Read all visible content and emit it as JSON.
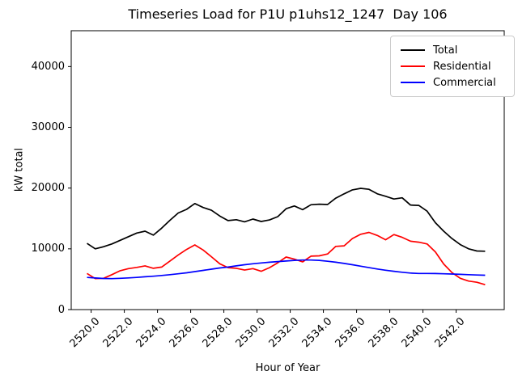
{
  "title": "Timeseries Load for P1U p1uhs12_1247  Day 106",
  "chart_data": {
    "type": "line",
    "title": "Timeseries Load for P1U p1uhs12_1247  Day 106",
    "xlabel": "Hour of Year",
    "ylabel": "kW total",
    "xlim": [
      2518.8,
      2544.9
    ],
    "ylim": [
      0,
      45900
    ],
    "x_ticks": [
      2520,
      2522,
      2524,
      2526,
      2528,
      2530,
      2532,
      2534,
      2536,
      2538,
      2540,
      2542
    ],
    "x_tick_rotation": 45,
    "y_ticks": [
      0,
      10000,
      20000,
      30000,
      40000
    ],
    "grid": false,
    "legend_position": "upper right",
    "x": [
      2519.75,
      2520.25,
      2520.75,
      2521.25,
      2521.75,
      2522.25,
      2522.75,
      2523.25,
      2523.75,
      2524.25,
      2524.75,
      2525.25,
      2525.75,
      2526.25,
      2526.75,
      2527.25,
      2527.75,
      2528.25,
      2528.75,
      2529.25,
      2529.75,
      2530.25,
      2530.75,
      2531.25,
      2531.75,
      2532.25,
      2532.75,
      2533.25,
      2533.75,
      2534.25,
      2534.75,
      2535.25,
      2535.75,
      2536.25,
      2536.75,
      2537.25,
      2537.75,
      2538.25,
      2538.75,
      2539.25,
      2539.75,
      2540.25,
      2540.75,
      2541.25,
      2541.75,
      2542.25,
      2542.75,
      2543.25,
      2543.75
    ],
    "series": [
      {
        "name": "Total",
        "color": "#000000",
        "values": [
          10900,
          10000,
          10350,
          10800,
          11400,
          12000,
          12600,
          12900,
          12250,
          13400,
          14700,
          15900,
          16500,
          17450,
          16800,
          16350,
          15400,
          14650,
          14800,
          14450,
          14900,
          14500,
          14750,
          15300,
          16600,
          17050,
          16450,
          17250,
          17350,
          17300,
          18350,
          19050,
          19700,
          19950,
          19800,
          19050,
          18650,
          18200,
          18400,
          17200,
          17150,
          16200,
          14300,
          12900,
          11700,
          10700,
          10000,
          9650,
          9600
        ]
      },
      {
        "name": "Residential",
        "color": "#ff0000",
        "values": [
          5950,
          5100,
          5150,
          5750,
          6400,
          6750,
          6950,
          7200,
          6800,
          7000,
          8000,
          9000,
          9900,
          10650,
          9800,
          8700,
          7550,
          6900,
          6800,
          6500,
          6750,
          6300,
          6900,
          7700,
          8650,
          8300,
          7850,
          8800,
          8850,
          9150,
          10400,
          10500,
          11700,
          12400,
          12700,
          12200,
          11500,
          12350,
          11900,
          11250,
          11100,
          10800,
          9500,
          7500,
          6100,
          5150,
          4700,
          4500,
          4100
        ]
      },
      {
        "name": "Commercial",
        "color": "#0000ff",
        "values": [
          5290,
          5200,
          5120,
          5100,
          5150,
          5220,
          5300,
          5400,
          5500,
          5620,
          5750,
          5900,
          6050,
          6250,
          6450,
          6650,
          6850,
          7000,
          7200,
          7380,
          7550,
          7680,
          7800,
          7900,
          8000,
          8100,
          8150,
          8150,
          8100,
          7950,
          7800,
          7600,
          7380,
          7150,
          6900,
          6680,
          6480,
          6300,
          6150,
          6020,
          5950,
          5950,
          5930,
          5900,
          5860,
          5800,
          5750,
          5700,
          5650
        ]
      }
    ]
  }
}
